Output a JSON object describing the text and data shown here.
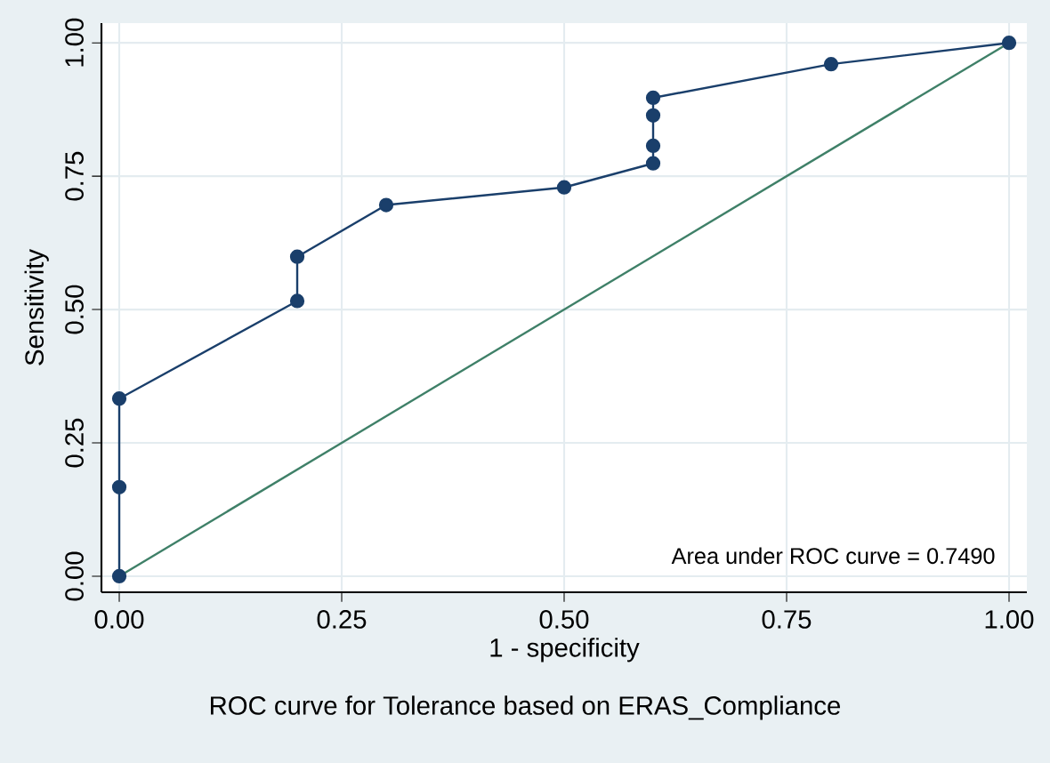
{
  "chart_data": {
    "type": "line",
    "title": "ROC curve for Tolerance based on ERAS_Compliance",
    "xlabel": "1 - specificity",
    "ylabel": "Sensitivity",
    "annotations": [
      "Area under ROC curve = 0.7490"
    ],
    "series": [
      {
        "x": [
          0,
          0,
          0,
          0.2,
          0.2,
          0.3,
          0.5,
          0.6,
          0.6,
          0.6,
          0.6,
          0.8,
          1
        ],
        "values": [
          0,
          0.167,
          0.333,
          0.516,
          0.599,
          0.696,
          0.729,
          0.774,
          0.807,
          0.864,
          0.897,
          0.96,
          1
        ],
        "color": "#1a3f6b",
        "marker": "circle"
      },
      {
        "x": [
          0,
          1
        ],
        "values": [
          0,
          1
        ],
        "color": "#3f8068"
      }
    ],
    "xlim": [
      -0.02,
      1.02
    ],
    "ylim": [
      -0.03,
      1.037
    ],
    "xticks": [
      {
        "value": 0,
        "label": "0.00"
      },
      {
        "value": 0.25,
        "label": "0.25"
      },
      {
        "value": 0.5,
        "label": "0.50"
      },
      {
        "value": 0.75,
        "label": "0.75"
      },
      {
        "value": 1,
        "label": "1.00"
      }
    ],
    "yticks": [
      {
        "value": 0,
        "label": "0.00"
      },
      {
        "value": 0.25,
        "label": "0.25"
      },
      {
        "value": 0.5,
        "label": "0.50"
      },
      {
        "value": 0.75,
        "label": "0.75"
      },
      {
        "value": 1,
        "label": "1.00"
      }
    ],
    "grid": true
  }
}
